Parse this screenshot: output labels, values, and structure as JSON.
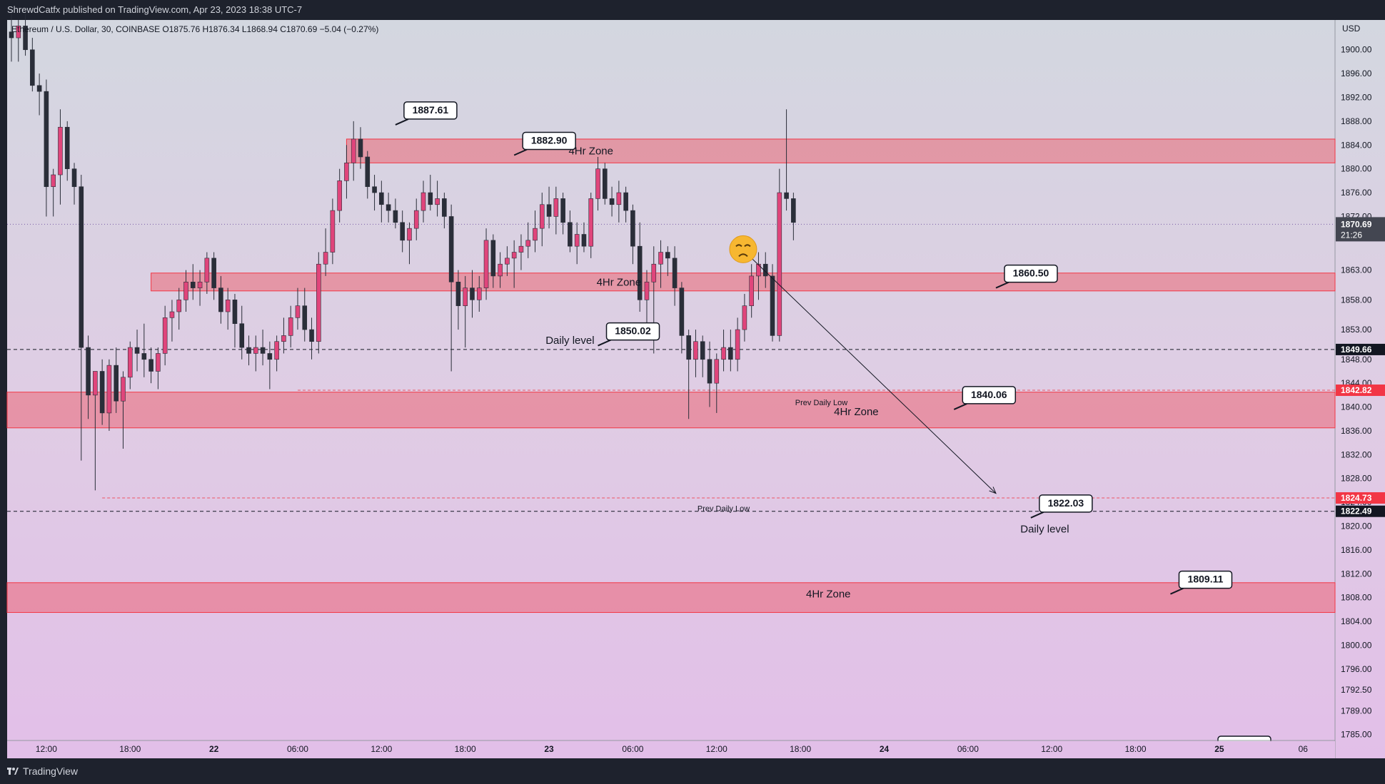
{
  "header": {
    "publisher": "ShrewdCatfx published on TradingView.com, Apr 23, 2023 18:38 UTC-7"
  },
  "footer": {
    "brand": "TradingView"
  },
  "chart_data": {
    "type": "candlestick",
    "symbol_line": "Ethereum / U.S. Dollar, 30, COINBASE",
    "ohlc": {
      "open": "O1875.76",
      "high": "H1876.34",
      "low": "L1868.94",
      "close": "C1870.69",
      "change": "−5.04 (−0.27%)"
    },
    "currency": "USD",
    "ylim": [
      1784,
      1905
    ],
    "y_ticks": [
      "1900.00",
      "1896.00",
      "1892.00",
      "1888.00",
      "1884.00",
      "1880.00",
      "1876.00",
      "1872.00",
      "1863.00",
      "1858.00",
      "1853.00",
      "1848.00",
      "1844.00",
      "1840.00",
      "1836.00",
      "1832.00",
      "1828.00",
      "1824.00",
      "1820.00",
      "1816.00",
      "1812.00",
      "1808.00",
      "1804.00",
      "1800.00",
      "1796.00",
      "1792.50",
      "1789.00",
      "1785.00"
    ],
    "x_ticks": [
      {
        "label": "12:00",
        "t": 5
      },
      {
        "label": "18:00",
        "t": 17
      },
      {
        "label": "22",
        "t": 29
      },
      {
        "label": "06:00",
        "t": 41
      },
      {
        "label": "12:00",
        "t": 53
      },
      {
        "label": "18:00",
        "t": 65
      },
      {
        "label": "23",
        "t": 77
      },
      {
        "label": "06:00",
        "t": 89
      },
      {
        "label": "12:00",
        "t": 101
      },
      {
        "label": "18:00",
        "t": 113
      },
      {
        "label": "24",
        "t": 125
      },
      {
        "label": "06:00",
        "t": 137
      },
      {
        "label": "12:00",
        "t": 149
      },
      {
        "label": "18:00",
        "t": 161
      },
      {
        "label": "25",
        "t": 173
      },
      {
        "label": "06",
        "t": 185
      }
    ],
    "zones": [
      {
        "label": "4Hr Zone",
        "low": 1881,
        "high": 1885,
        "t_start": 48,
        "t_end": 192
      },
      {
        "label": "4Hr Zone",
        "low": 1859.5,
        "high": 1862.5,
        "t_start": 20,
        "t_end": 192
      },
      {
        "label": "4Hr Zone",
        "low": 1836.5,
        "high": 1842.5,
        "t_start": -1,
        "t_end": 192
      },
      {
        "label": "4Hr Zone",
        "low": 1805.5,
        "high": 1810.5,
        "t_start": -1,
        "t_end": 192
      }
    ],
    "levels": [
      {
        "name": "Daily level",
        "value": 1849.66,
        "t_start": -1,
        "badge": "1849.66",
        "badge_color": "#131722",
        "dash": "5,4"
      },
      {
        "name": "Prev Daily Low",
        "value": 1842.82,
        "t_start": 41,
        "badge": "1842.82",
        "badge_color": "#f23645",
        "dash": "4,3"
      },
      {
        "name": "Prev Daily Low",
        "value": 1824.73,
        "t_start": 13,
        "badge": "1824.73",
        "badge_color": "#f23645",
        "dash": "4,3"
      },
      {
        "name": "Daily level",
        "value": 1822.49,
        "t_start": -1,
        "badge": "1822.49",
        "badge_color": "#131722",
        "dash": "5,4"
      }
    ],
    "current_price": {
      "value": 1870.69,
      "label": "1870.69",
      "countdown": "21:26"
    },
    "callouts": [
      {
        "label": "1887.61",
        "t": 55,
        "price": 1887.4,
        "side": "right"
      },
      {
        "label": "1882.90",
        "t": 72,
        "price": 1882.3,
        "side": "right"
      },
      {
        "label": "1860.50",
        "t": 141,
        "price": 1860.0,
        "side": "right"
      },
      {
        "label": "1850.02",
        "t": 84,
        "price": 1850.3,
        "side": "right"
      },
      {
        "label": "1840.06",
        "t": 135,
        "price": 1839.6,
        "side": "right"
      },
      {
        "label": "1822.03",
        "t": 146,
        "price": 1821.4,
        "side": "right"
      },
      {
        "label": "1809.11",
        "t": 166,
        "price": 1808.6,
        "side": "right"
      }
    ],
    "text_labels": [
      {
        "text": "4Hr Zone",
        "t": 83,
        "price": 1883
      },
      {
        "text": "4Hr Zone",
        "t": 87,
        "price": 1861
      },
      {
        "text": "Daily level",
        "t": 80,
        "price": 1851.2
      },
      {
        "text": "Prev Daily Low",
        "t": 116,
        "price": 1840.9,
        "small": true
      },
      {
        "text": "4Hr Zone",
        "t": 121,
        "price": 1839.2
      },
      {
        "text": "Prev Daily Low",
        "t": 102,
        "price": 1823.1,
        "small": true
      },
      {
        "text": "Daily level",
        "t": 148,
        "price": 1819.5
      },
      {
        "text": "4Hr Zone",
        "t": 117,
        "price": 1808.6
      }
    ],
    "arrow": {
      "t1": 106,
      "p1": 1865,
      "t2": 141,
      "p2": 1825.5
    },
    "candles": [
      [
        1903,
        1906,
        1898,
        1902
      ],
      [
        1902,
        1905,
        1898,
        1904
      ],
      [
        1904,
        1906,
        1899,
        1900
      ],
      [
        1900,
        1902,
        1893,
        1894
      ],
      [
        1894,
        1896,
        1889,
        1893
      ],
      [
        1893,
        1895,
        1872,
        1877
      ],
      [
        1877,
        1880,
        1872,
        1879
      ],
      [
        1879,
        1890,
        1874,
        1887
      ],
      [
        1887,
        1888,
        1878,
        1880
      ],
      [
        1880,
        1881,
        1874,
        1877
      ],
      [
        1877,
        1879,
        1831,
        1850
      ],
      [
        1850,
        1852,
        1838,
        1842
      ],
      [
        1842,
        1845,
        1826,
        1846
      ],
      [
        1846,
        1848,
        1837,
        1839
      ],
      [
        1839,
        1848,
        1836,
        1847
      ],
      [
        1847,
        1850,
        1839,
        1841
      ],
      [
        1841,
        1846,
        1833,
        1845
      ],
      [
        1845,
        1851,
        1843,
        1850
      ],
      [
        1850,
        1853,
        1846,
        1849
      ],
      [
        1849,
        1854,
        1845,
        1848
      ],
      [
        1848,
        1850,
        1844,
        1846
      ],
      [
        1846,
        1850,
        1843,
        1849
      ],
      [
        1849,
        1857,
        1847,
        1855
      ],
      [
        1855,
        1858,
        1851,
        1856
      ],
      [
        1856,
        1860,
        1853,
        1858
      ],
      [
        1858,
        1863,
        1856,
        1861
      ],
      [
        1861,
        1864,
        1858,
        1860
      ],
      [
        1860,
        1863,
        1857,
        1861
      ],
      [
        1861,
        1866,
        1859,
        1865
      ],
      [
        1865,
        1866,
        1858,
        1860
      ],
      [
        1860,
        1862,
        1854,
        1856
      ],
      [
        1856,
        1860,
        1853,
        1858
      ],
      [
        1858,
        1859,
        1850,
        1854
      ],
      [
        1854,
        1857,
        1848,
        1850
      ],
      [
        1850,
        1852,
        1847,
        1849
      ],
      [
        1849,
        1852,
        1846,
        1850
      ],
      [
        1850,
        1853,
        1847,
        1849
      ],
      [
        1849,
        1851,
        1843,
        1848
      ],
      [
        1848,
        1852,
        1846,
        1851
      ],
      [
        1851,
        1855,
        1849,
        1852
      ],
      [
        1852,
        1857,
        1850,
        1855
      ],
      [
        1855,
        1860,
        1853,
        1857
      ],
      [
        1857,
        1860,
        1851,
        1853
      ],
      [
        1853,
        1855,
        1848,
        1851
      ],
      [
        1851,
        1866,
        1849,
        1864
      ],
      [
        1864,
        1870,
        1862,
        1866
      ],
      [
        1866,
        1875,
        1864,
        1873
      ],
      [
        1873,
        1880,
        1871,
        1878
      ],
      [
        1878,
        1884,
        1875,
        1881
      ],
      [
        1881,
        1888,
        1878,
        1885
      ],
      [
        1885,
        1887,
        1880,
        1882
      ],
      [
        1882,
        1883,
        1875,
        1877
      ],
      [
        1877,
        1879,
        1873,
        1876
      ],
      [
        1876,
        1878,
        1871,
        1874
      ],
      [
        1874,
        1876,
        1871,
        1873
      ],
      [
        1873,
        1875,
        1870,
        1871
      ],
      [
        1871,
        1873,
        1866,
        1868
      ],
      [
        1868,
        1871,
        1864,
        1870
      ],
      [
        1870,
        1875,
        1868,
        1873
      ],
      [
        1873,
        1878,
        1871,
        1876
      ],
      [
        1876,
        1879,
        1873,
        1874
      ],
      [
        1874,
        1878,
        1872,
        1875
      ],
      [
        1875,
        1876,
        1870,
        1872
      ],
      [
        1872,
        1874,
        1846,
        1861
      ],
      [
        1861,
        1863,
        1853,
        1857
      ],
      [
        1857,
        1862,
        1850,
        1860
      ],
      [
        1860,
        1863,
        1855,
        1858
      ],
      [
        1858,
        1862,
        1856,
        1860
      ],
      [
        1860,
        1870,
        1858,
        1868
      ],
      [
        1868,
        1869,
        1860,
        1862
      ],
      [
        1862,
        1866,
        1860,
        1864
      ],
      [
        1864,
        1867,
        1862,
        1865
      ],
      [
        1865,
        1868,
        1860,
        1866
      ],
      [
        1866,
        1869,
        1863,
        1867
      ],
      [
        1867,
        1871,
        1865,
        1868
      ],
      [
        1868,
        1873,
        1866,
        1870
      ],
      [
        1870,
        1876,
        1867,
        1874
      ],
      [
        1874,
        1877,
        1870,
        1872
      ],
      [
        1872,
        1877,
        1869,
        1875
      ],
      [
        1875,
        1876,
        1869,
        1871
      ],
      [
        1871,
        1873,
        1866,
        1867
      ],
      [
        1867,
        1871,
        1864,
        1869
      ],
      [
        1869,
        1871,
        1866,
        1867
      ],
      [
        1867,
        1876,
        1865,
        1875
      ],
      [
        1875,
        1882,
        1873,
        1880
      ],
      [
        1880,
        1881,
        1874,
        1875
      ],
      [
        1875,
        1877,
        1872,
        1874
      ],
      [
        1874,
        1878,
        1871,
        1876
      ],
      [
        1876,
        1877,
        1871,
        1873
      ],
      [
        1873,
        1874,
        1864,
        1867
      ],
      [
        1867,
        1871,
        1856,
        1858
      ],
      [
        1858,
        1863,
        1853,
        1861
      ],
      [
        1861,
        1867,
        1849,
        1864
      ],
      [
        1864,
        1868,
        1860,
        1866
      ],
      [
        1866,
        1867,
        1862,
        1865
      ],
      [
        1865,
        1867,
        1857,
        1860
      ],
      [
        1860,
        1861,
        1849,
        1852
      ],
      [
        1852,
        1853,
        1838,
        1848
      ],
      [
        1848,
        1853,
        1845,
        1851
      ],
      [
        1851,
        1852,
        1845,
        1848
      ],
      [
        1848,
        1851,
        1840,
        1844
      ],
      [
        1844,
        1849,
        1839,
        1848
      ],
      [
        1848,
        1853,
        1846,
        1850
      ],
      [
        1850,
        1853,
        1846,
        1848
      ],
      [
        1848,
        1855,
        1846,
        1853
      ],
      [
        1853,
        1859,
        1851,
        1857
      ],
      [
        1857,
        1864,
        1855,
        1862
      ],
      [
        1862,
        1866,
        1858,
        1864
      ],
      [
        1864,
        1866,
        1860,
        1862
      ],
      [
        1862,
        1864,
        1851,
        1852
      ],
      [
        1852,
        1880,
        1851,
        1876
      ],
      [
        1876,
        1890,
        1873,
        1875
      ],
      [
        1875,
        1876,
        1868,
        1871
      ]
    ]
  }
}
